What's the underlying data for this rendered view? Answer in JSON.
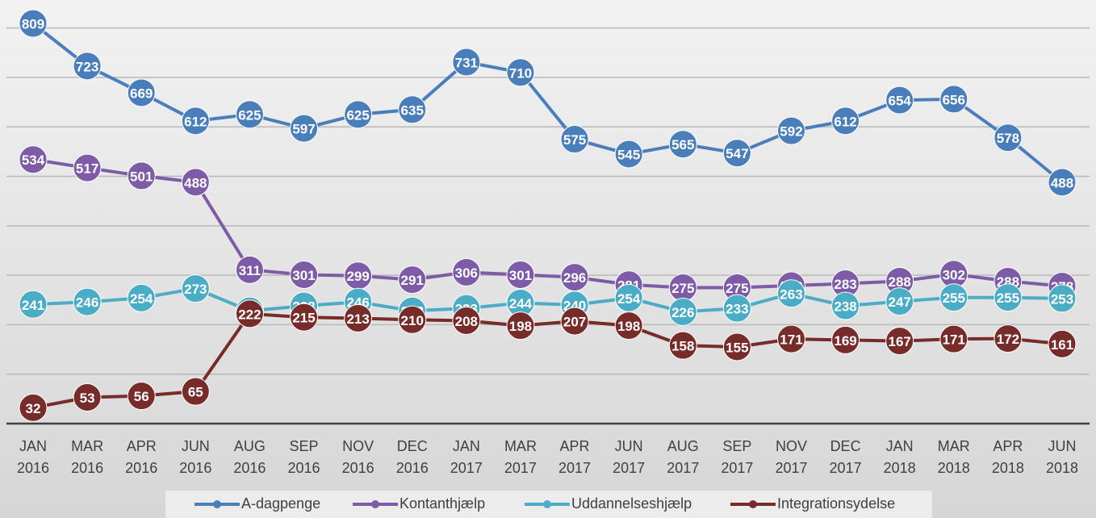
{
  "chart_data": {
    "type": "line",
    "categories": [
      "JAN 2016",
      "MAR 2016",
      "APR 2016",
      "JUN 2016",
      "AUG 2016",
      "SEP 2016",
      "NOV 2016",
      "DEC 2016",
      "JAN 2017",
      "MAR 2017",
      "APR 2017",
      "JUN 2017",
      "AUG 2017",
      "SEP 2017",
      "NOV 2017",
      "DEC 2017",
      "JAN 2018",
      "MAR 2018",
      "APR 2018",
      "JUN 2018"
    ],
    "series": [
      {
        "name": "A-dagpenge",
        "color": "#4a7ebb",
        "values": [
          809,
          723,
          669,
          612,
          625,
          597,
          625,
          635,
          731,
          710,
          575,
          545,
          565,
          547,
          592,
          612,
          654,
          656,
          578,
          488
        ]
      },
      {
        "name": "Kontanthjælp",
        "color": "#7d5ba6",
        "values": [
          534,
          517,
          501,
          488,
          311,
          301,
          299,
          291,
          306,
          301,
          296,
          281,
          275,
          275,
          279,
          283,
          288,
          302,
          288,
          278
        ]
      },
      {
        "name": "Uddannelseshjælp",
        "color": "#4bacc6",
        "values": [
          241,
          246,
          254,
          273,
          228,
          238,
          246,
          228,
          233,
          244,
          240,
          254,
          226,
          233,
          263,
          238,
          247,
          255,
          255,
          253
        ]
      },
      {
        "name": "Integrationsydelse",
        "color": "#772c2a",
        "values": [
          32,
          53,
          56,
          65,
          222,
          215,
          213,
          210,
          208,
          198,
          207,
          198,
          158,
          155,
          171,
          169,
          167,
          171,
          172,
          161
        ]
      }
    ],
    "ylim": [
      0,
      850
    ],
    "yticks": [
      0,
      100,
      200,
      300,
      400,
      500,
      600,
      700,
      800
    ],
    "grid": true,
    "legend": "bottom"
  }
}
